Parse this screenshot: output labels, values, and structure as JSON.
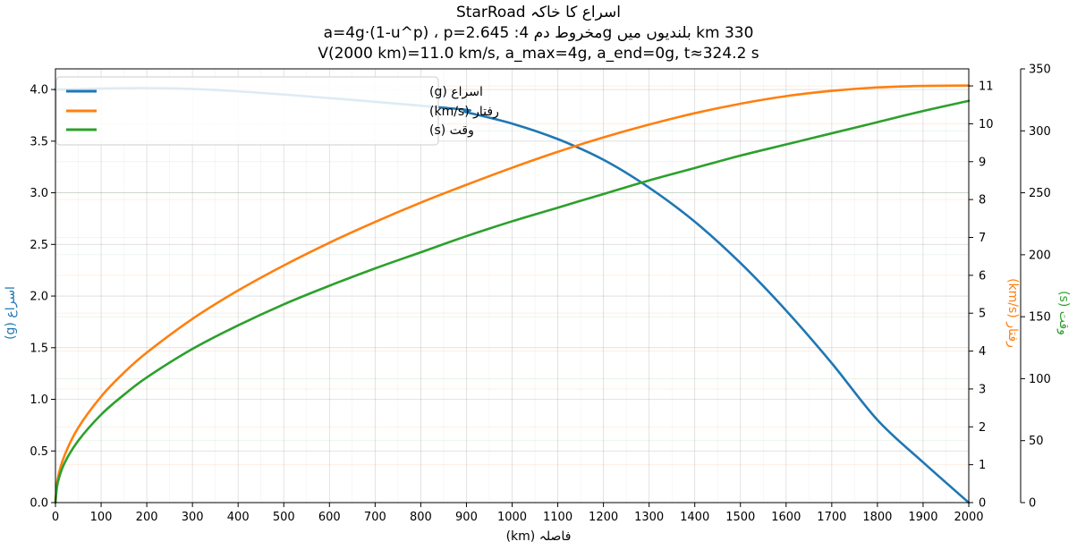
{
  "chart_data": {
    "type": "line",
    "title": {
      "line1": "StarRoad اسراع کا خاکہ",
      "line2": "a=4g·(1-u^p) ، p=2.645 :مخروط دم  4g بلندیوں میں km 330",
      "line3": "V(2000 km)=11.0 km/s, a_max=4g, a_end=0g, t≈324.2 s"
    },
    "xlabel": "فاصلہ (km)",
    "xlim": [
      0,
      2000
    ],
    "x_ticks": [
      "0",
      "100",
      "200",
      "300",
      "400",
      "500",
      "600",
      "700",
      "800",
      "900",
      "1000",
      "1100",
      "1200",
      "1300",
      "1400",
      "1500",
      "1600",
      "1700",
      "1800",
      "1900",
      "2000"
    ],
    "axes": {
      "left": {
        "label": "اسراع (g)",
        "ylim": [
          0,
          4.2
        ],
        "ticks": [
          "0.0",
          "0.5",
          "1.0",
          "1.5",
          "2.0",
          "2.5",
          "3.0",
          "3.5",
          "4.0"
        ],
        "color": "#1f77b4"
      },
      "right1": {
        "label": "رفتار (km/s)",
        "ylim": [
          0,
          11.45
        ],
        "ticks": [
          "0",
          "1",
          "2",
          "3",
          "4",
          "5",
          "6",
          "7",
          "8",
          "9",
          "10",
          "11"
        ],
        "color": "#ff7f0e"
      },
      "right2": {
        "label": "وقت (s)",
        "ylim": [
          0,
          350
        ],
        "ticks": [
          "0",
          "50",
          "100",
          "150",
          "200",
          "250",
          "300",
          "350"
        ],
        "color": "#2ca02c"
      }
    },
    "grid": true,
    "legend_position": "top-left",
    "series": [
      {
        "name": "اسراع (g)",
        "axis": "left",
        "color": "#1f77b4",
        "x": [
          0,
          330,
          860,
          900,
          1000,
          1100,
          1200,
          1300,
          1400,
          1500,
          1600,
          1700,
          1800,
          1900,
          2000
        ],
        "y": [
          4.0,
          4.0,
          3.82,
          3.78,
          3.67,
          3.52,
          3.32,
          3.05,
          2.72,
          2.32,
          1.86,
          1.35,
          0.8,
          0.39,
          0.0
        ]
      },
      {
        "name": "رفتار (km/s)",
        "axis": "right1",
        "color": "#ff7f0e",
        "x": [
          0,
          5,
          20,
          50,
          100,
          150,
          200,
          300,
          400,
          500,
          600,
          700,
          800,
          900,
          1000,
          1100,
          1200,
          1300,
          1400,
          1500,
          1600,
          1700,
          1800,
          1900,
          2000
        ],
        "y": [
          0,
          0.63,
          1.25,
          1.98,
          2.8,
          3.43,
          3.96,
          4.85,
          5.6,
          6.26,
          6.86,
          7.41,
          7.92,
          8.39,
          8.84,
          9.26,
          9.64,
          9.98,
          10.28,
          10.53,
          10.73,
          10.87,
          10.96,
          11.0,
          11.01
        ]
      },
      {
        "name": "وقت (s)",
        "axis": "right2",
        "color": "#2ca02c",
        "x": [
          0,
          5,
          20,
          50,
          100,
          150,
          200,
          300,
          400,
          500,
          600,
          700,
          800,
          900,
          1000,
          1100,
          1200,
          1300,
          1400,
          1500,
          1600,
          1700,
          1800,
          1900,
          2000
        ],
        "y": [
          0,
          16,
          32,
          50,
          71,
          87,
          101,
          124,
          143,
          160,
          175,
          189,
          202,
          215,
          227,
          238,
          249,
          260,
          270,
          280,
          289,
          298,
          307,
          316,
          324.2
        ]
      }
    ]
  }
}
